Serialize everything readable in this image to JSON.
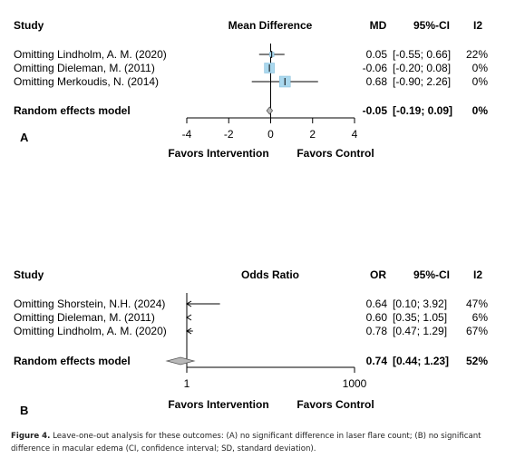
{
  "colors": {
    "box_fill": "#aad8ee",
    "box_edge": "#7fb9d8",
    "diamond_fill": "#b8b8b8",
    "line": "#000000"
  },
  "caption": {
    "label": "Figure 4.",
    "text": "Leave-one-out analysis for these outcomes: (A) no significant difference in laser flare count; (B) no significant difference in macular edema (CI, confidence interval; SD, standard deviation)."
  },
  "chart_data": [
    {
      "type": "forest",
      "panel_label": "A",
      "columns": {
        "study": "Study",
        "effect": "Mean Difference",
        "est": "MD",
        "ci": "95%-CI",
        "i2": "I2"
      },
      "xlim": [
        -4,
        4
      ],
      "ticks": [
        -4,
        -2,
        0,
        2,
        4
      ],
      "null_value": 0,
      "favors_left": "Favors Intervention",
      "favors_right": "Favors Control",
      "rows": [
        {
          "study": "Omitting Lindholm, A. M. (2020)",
          "est": 0.05,
          "lo": -0.55,
          "hi": 0.66,
          "est_text": "0.05",
          "ci_text": "[-0.55; 0.66]",
          "i2_text": "22%"
        },
        {
          "study": "Omitting Dieleman, M. (2011)",
          "est": -0.06,
          "lo": -0.2,
          "hi": 0.08,
          "est_text": "-0.06",
          "ci_text": "[-0.20; 0.08]",
          "i2_text": "0%"
        },
        {
          "study": "Omitting Merkoudis, N. (2014)",
          "est": 0.68,
          "lo": -0.9,
          "hi": 2.26,
          "est_text": "0.68",
          "ci_text": "[-0.90; 2.26]",
          "i2_text": "0%"
        }
      ],
      "summary": {
        "label": "Random effects model",
        "est": -0.05,
        "lo": -0.19,
        "hi": 0.09,
        "est_text": "-0.05",
        "ci_text": "[-0.19; 0.09]",
        "i2_text": "0%"
      }
    },
    {
      "type": "forest",
      "panel_label": "B",
      "log_scale": true,
      "columns": {
        "study": "Study",
        "effect": "Odds Ratio",
        "est": "OR",
        "ci": "95%-CI",
        "i2": "I2"
      },
      "xlim": [
        1,
        1000
      ],
      "ticks": [
        1,
        1000
      ],
      "null_value": 1,
      "favors_left": "Favors Intervention",
      "favors_right": "Favors Control",
      "rows": [
        {
          "study": "Omitting Shorstein, N.H. (2024)",
          "est": 0.64,
          "lo": 0.1,
          "hi": 3.92,
          "est_text": "0.64",
          "ci_text": "[0.10; 3.92]",
          "i2_text": "47%"
        },
        {
          "study": "Omitting Dieleman, M. (2011)",
          "est": 0.6,
          "lo": 0.35,
          "hi": 1.05,
          "est_text": "0.60",
          "ci_text": "[0.35; 1.05]",
          "i2_text": "6%"
        },
        {
          "study": "Omitting Lindholm, A. M. (2020)",
          "est": 0.78,
          "lo": 0.47,
          "hi": 1.29,
          "est_text": "0.78",
          "ci_text": "[0.47; 1.29]",
          "i2_text": "67%"
        }
      ],
      "summary": {
        "label": "Random effects model",
        "est": 0.74,
        "lo": 0.44,
        "hi": 1.23,
        "est_text": "0.74",
        "ci_text": "[0.44; 1.23]",
        "i2_text": "52%"
      }
    }
  ]
}
